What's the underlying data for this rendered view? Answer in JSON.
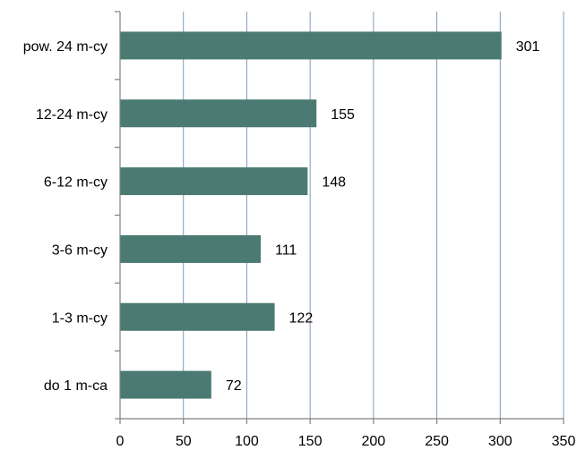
{
  "chart_data": {
    "type": "bar",
    "orientation": "horizontal",
    "categories": [
      "pow. 24 m-cy",
      "12-24 m-cy",
      "6-12 m-cy",
      "3-6 m-cy",
      "1-3 m-cy",
      "do 1 m-ca"
    ],
    "values": [
      301,
      155,
      148,
      111,
      122,
      72
    ],
    "value_labels": [
      "301",
      "155",
      "148",
      "111",
      "122",
      "72"
    ],
    "xlim": [
      0,
      350
    ],
    "xticks": [
      0,
      50,
      100,
      150,
      200,
      250,
      300,
      350
    ],
    "xtick_labels": [
      "0",
      "50",
      "100",
      "150",
      "200",
      "250",
      "300",
      "350"
    ],
    "grid": "vertical",
    "legend": "none",
    "title": "",
    "xlabel": "",
    "ylabel": ""
  },
  "colors": {
    "bar": "#4a7a72",
    "grid": "#7f9bb8",
    "axis": "#808080"
  }
}
